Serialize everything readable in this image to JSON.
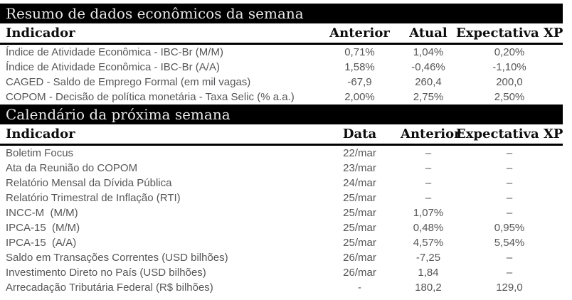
{
  "colors": {
    "band_background": "#000000",
    "band_text": "#e9e9e9",
    "header_text": "#0d0d0d",
    "data_text": "#565658"
  },
  "summary_table": {
    "title": "Resumo de dados econômicos da semana",
    "headers": {
      "indicator": "Indicador",
      "anterior": "Anterior",
      "atual": "Atual",
      "expectativa": "Expectativa XP"
    },
    "rows": [
      {
        "indicator": "Índice de Atividade Econômica - IBC-Br (M/M)",
        "anterior": "0,71%",
        "atual": "1,04%",
        "expectativa": "0,20%"
      },
      {
        "indicator": "Índice de Atividade Econômica - IBC-Br (A/A)",
        "anterior": "1,58%",
        "atual": "-0,46%",
        "expectativa": "-1,10%"
      },
      {
        "indicator": "CAGED - Saldo de Emprego Formal (em mil vagas)",
        "anterior": "-67,9",
        "atual": "260,4",
        "expectativa": "200,0"
      },
      {
        "indicator": "COPOM - Decisão de política monetária - Taxa Selic (% a.a.)",
        "anterior": "2,00%",
        "atual": "2,75%",
        "expectativa": "2,50%"
      }
    ]
  },
  "calendar_table": {
    "title": "Calendário da próxima semana",
    "headers": {
      "indicator": "Indicador",
      "data": "Data",
      "anterior": "Anterior",
      "expectativa": "Expectativa XP"
    },
    "rows": [
      {
        "indicator": "Boletim Focus",
        "data": "22/mar",
        "anterior": "–",
        "expectativa": "–"
      },
      {
        "indicator": "Ata da Reunião do COPOM",
        "data": "23/mar",
        "anterior": "–",
        "expectativa": "–"
      },
      {
        "indicator": "Relatório Mensal da Dívida Pública",
        "data": "24/mar",
        "anterior": "–",
        "expectativa": "–"
      },
      {
        "indicator": "Relatório Trimestral de Inflação (RTI)",
        "data": "25/mar",
        "anterior": "–",
        "expectativa": "–"
      },
      {
        "indicator": "INCC-M  (M/M)",
        "data": "25/mar",
        "anterior": "1,07%",
        "expectativa": "–"
      },
      {
        "indicator": "IPCA-15  (M/M)",
        "data": "25/mar",
        "anterior": "0,48%",
        "expectativa": "0,95%"
      },
      {
        "indicator": "IPCA-15  (A/A)",
        "data": "25/mar",
        "anterior": "4,57%",
        "expectativa": "5,54%"
      },
      {
        "indicator": "Saldo em Transações Correntes (USD bilhões)",
        "data": "26/mar",
        "anterior": "-7,25",
        "expectativa": "–"
      },
      {
        "indicator": "Investimento Direto no País (USD bilhões)",
        "data": "26/mar",
        "anterior": "1,84",
        "expectativa": "–"
      },
      {
        "indicator": "Arrecadação Tributária Federal (R$ bilhões)",
        "data": "-",
        "anterior": "180,2",
        "expectativa": "129,0"
      }
    ]
  }
}
